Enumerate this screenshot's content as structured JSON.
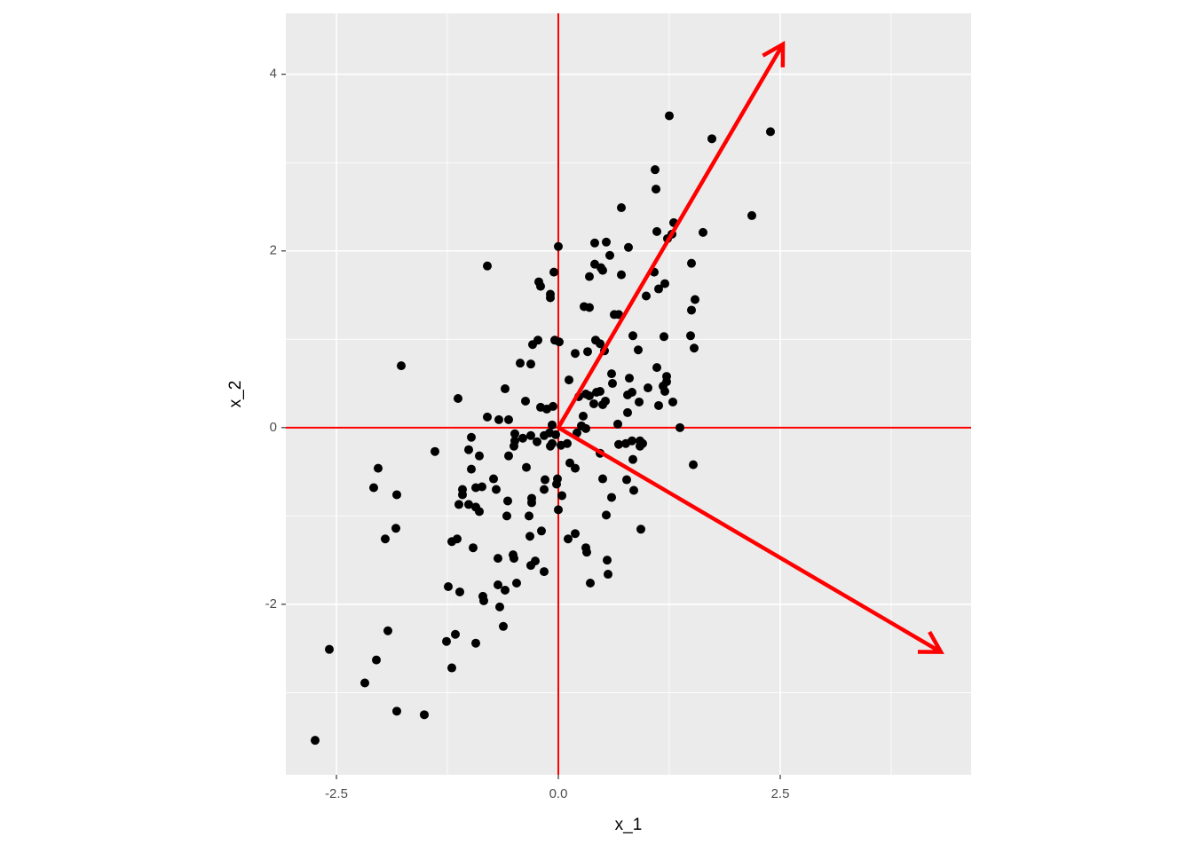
{
  "chart_data": {
    "type": "scatter",
    "x_label": "x_1",
    "y_label": "x_2",
    "xlim": [
      -3.07,
      4.65
    ],
    "ylim": [
      -3.93,
      4.69
    ],
    "xticks": [
      -2.5,
      {
        "value": 0,
        "label": "0.0"
      },
      2.5
    ],
    "yticks": [
      -2,
      0,
      2,
      4
    ],
    "xminorticks": [
      -1.25,
      1.25,
      3.75
    ],
    "yminorticks": [
      -3,
      -1,
      1,
      3
    ],
    "grid": true,
    "color": "#000000",
    "x": [
      -2.74,
      -2.58,
      -2.18,
      -2.05,
      -1.82,
      -1.51,
      -1.92,
      -1.95,
      -1.83,
      -1.82,
      -2.08,
      -2.03,
      -1.77,
      -1.39,
      -1.26,
      -1.2,
      -1.16,
      -0.93,
      -1.24,
      -1.11,
      -1.2,
      -1.14,
      -0.96,
      -1.12,
      -1.08,
      -1.08,
      -1.01,
      -0.93,
      -0.89,
      -0.86,
      -0.93,
      -0.98,
      -1.01,
      -0.98,
      -0.89,
      -1.13,
      -0.8,
      -0.8,
      -0.85,
      -0.84,
      -0.68,
      -0.66,
      -0.62,
      -0.6,
      -0.68,
      -0.51,
      -0.5,
      -0.47,
      -0.31,
      -0.26,
      -0.16,
      -0.32,
      -0.19,
      -0.33,
      -0.58,
      -0.3,
      -0.3,
      -0.57,
      -0.7,
      -0.73,
      -0.16,
      -0.15,
      -0.02,
      -0.01,
      0.0,
      0.04,
      -0.36,
      -0.56,
      -0.5,
      -0.49,
      -0.4,
      -0.31,
      -0.24,
      -0.49,
      -0.09,
      -0.07,
      0.03,
      0.1,
      0.13,
      0.19,
      0.21,
      -0.67,
      -0.56,
      -0.6,
      -0.37,
      -0.2,
      -0.13,
      -0.06,
      -0.07,
      -0.43,
      -0.31,
      -0.29,
      -0.23,
      -0.04,
      0.01,
      0.12,
      0.19,
      0.23,
      0.28,
      0.31,
      0.35,
      0.43,
      0.47,
      0.4,
      0.5,
      0.53,
      0.33,
      0.42,
      0.47,
      0.52,
      0.6,
      0.61,
      0.67,
      0.68,
      0.76,
      0.83,
      0.84,
      0.92,
      0.92,
      0.95,
      0.47,
      0.5,
      0.6,
      0.54,
      0.77,
      0.85,
      0.93,
      0.11,
      0.19,
      0.31,
      0.32,
      0.36,
      0.55,
      0.56,
      0.78,
      0.83,
      0.78,
      0.8,
      0.91,
      1.01,
      0.84,
      0.9,
      1.11,
      1.18,
      1.2,
      1.13,
      1.22,
      1.22,
      1.29,
      1.37,
      1.52,
      1.19,
      1.49,
      1.53,
      1.5,
      1.54,
      1.5,
      1.13,
      1.2,
      1.08,
      0.99,
      1.11,
      1.23,
      1.3,
      1.28,
      1.63,
      1.1,
      1.09,
      1.25,
      1.73,
      2.39,
      2.18,
      0.71,
      0.79,
      0.54,
      0.41,
      0.58,
      0.41,
      0.48,
      0.5,
      0.35,
      0.71,
      0.29,
      0.35,
      0.63,
      0.68,
      0.0,
      -0.05,
      -0.22,
      -0.2,
      -0.09,
      -0.09,
      -0.16,
      -0.1,
      -0.03,
      0.26,
      0.31
    ],
    "values": [
      -3.54,
      -2.51,
      -2.89,
      -2.63,
      -3.21,
      -3.25,
      -2.3,
      -1.26,
      -1.14,
      -0.76,
      -0.68,
      -0.46,
      0.7,
      -0.27,
      -2.42,
      -2.72,
      -2.34,
      -2.44,
      -1.8,
      -1.86,
      -1.29,
      -1.26,
      -1.36,
      -0.87,
      -0.7,
      -0.76,
      -0.87,
      -0.9,
      -0.95,
      -0.67,
      -0.68,
      -0.47,
      -0.25,
      -0.11,
      -0.32,
      0.33,
      0.12,
      1.83,
      -1.91,
      -1.96,
      -1.78,
      -2.03,
      -2.25,
      -1.84,
      -1.48,
      -1.44,
      -1.48,
      -1.76,
      -1.56,
      -1.51,
      -1.63,
      -1.23,
      -1.17,
      -1.0,
      -1.0,
      -0.85,
      -0.8,
      -0.83,
      -0.7,
      -0.58,
      -0.7,
      -0.59,
      -0.64,
      -0.58,
      -0.93,
      -0.77,
      -0.45,
      -0.32,
      -0.21,
      -0.15,
      -0.12,
      -0.09,
      -0.16,
      -0.07,
      -0.21,
      -0.18,
      -0.2,
      -0.18,
      -0.4,
      -0.46,
      -0.06,
      0.09,
      0.09,
      0.44,
      0.3,
      0.23,
      0.21,
      0.24,
      0.03,
      0.73,
      0.72,
      0.94,
      0.99,
      0.99,
      0.97,
      0.54,
      0.84,
      0.35,
      0.13,
      0.38,
      0.36,
      0.4,
      0.41,
      0.27,
      0.26,
      0.3,
      0.86,
      0.99,
      0.95,
      0.87,
      0.61,
      0.5,
      0.04,
      -0.19,
      -0.18,
      -0.15,
      -0.36,
      -0.15,
      -0.21,
      -0.18,
      -0.29,
      -0.58,
      -0.79,
      -0.99,
      -0.59,
      -0.71,
      -1.15,
      -1.26,
      -1.2,
      -1.36,
      -1.41,
      -1.76,
      -1.5,
      -1.66,
      0.17,
      0.4,
      0.37,
      0.56,
      0.29,
      0.45,
      1.04,
      0.88,
      0.68,
      0.47,
      0.41,
      0.25,
      0.58,
      0.52,
      0.29,
      0.0,
      -0.42,
      1.03,
      1.04,
      0.9,
      1.33,
      1.45,
      1.86,
      1.57,
      1.63,
      1.76,
      1.49,
      2.22,
      2.14,
      2.32,
      2.19,
      2.21,
      2.7,
      2.92,
      3.53,
      3.27,
      3.35,
      2.4,
      2.49,
      2.04,
      2.1,
      2.09,
      1.95,
      1.85,
      1.81,
      1.78,
      1.71,
      1.73,
      1.37,
      1.36,
      1.28,
      1.28,
      2.05,
      1.76,
      1.65,
      1.6,
      1.47,
      1.51,
      -0.09,
      -0.06,
      -0.08,
      0.02,
      -0.01
    ],
    "reference_lines": {
      "x": 0,
      "y": 0,
      "color": "#ff0000"
    },
    "arrows": [
      {
        "x": 2.53,
        "y": 4.34
      },
      {
        "x": 4.31,
        "y": -2.54
      }
    ],
    "arrow_color": "#ff0000"
  }
}
